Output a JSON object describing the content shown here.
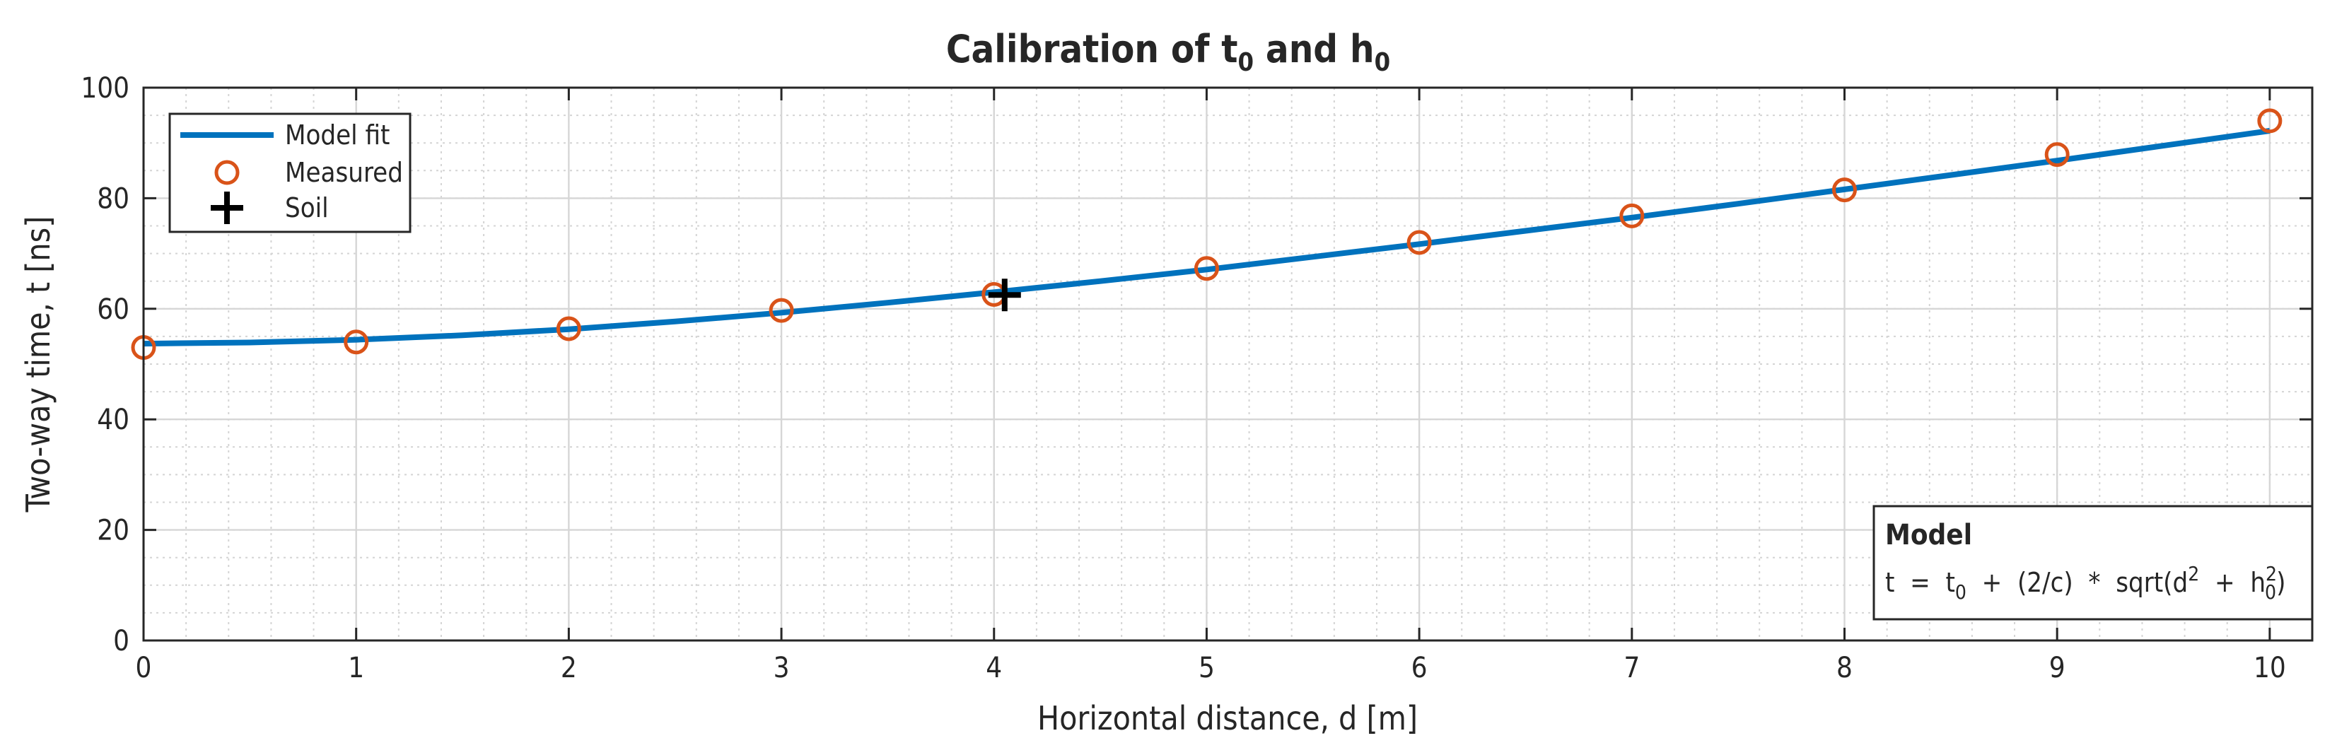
{
  "chart_data": {
    "type": "line",
    "title": "Calibration of t0 and h0",
    "title_parts": {
      "pre": "Calibration of ",
      "sym1": "t",
      "sub1": "0",
      "mid": " and ",
      "sym2": "h",
      "sub2": "0"
    },
    "xlabel": "Horizontal distance, d [m]",
    "ylabel": "Two-way time, t [ns]",
    "xlim": [
      0,
      10.2
    ],
    "ylim": [
      0,
      100
    ],
    "xticks": [
      0,
      1,
      2,
      3,
      4,
      5,
      6,
      7,
      8,
      9,
      10
    ],
    "yticks": [
      0,
      20,
      40,
      60,
      80,
      100
    ],
    "grid": true,
    "minor_grid": true,
    "legend_position": "top-left",
    "series": [
      {
        "name": "Model fit",
        "style": "line",
        "color": "#0072BD",
        "x": [
          0,
          0.5,
          1,
          1.5,
          2,
          2.5,
          3,
          3.5,
          4,
          4.5,
          5,
          5.5,
          6,
          6.5,
          7,
          7.5,
          8,
          8.5,
          9,
          9.5,
          10
        ],
        "y": [
          53.7,
          53.9,
          54.4,
          55.2,
          56.3,
          57.7,
          59.3,
          61.1,
          63.0,
          65.0,
          67.1,
          69.4,
          71.7,
          74.1,
          76.5,
          79.0,
          81.6,
          84.2,
          86.8,
          89.5,
          92.2
        ]
      },
      {
        "name": "Measured",
        "style": "circle",
        "color": "#D95319",
        "x": [
          0,
          1,
          2,
          3,
          4,
          5,
          6,
          7,
          8,
          9,
          10
        ],
        "y": [
          53,
          54,
          56.4,
          59.7,
          62.6,
          67.3,
          72,
          76.8,
          81.5,
          87.9,
          94
        ]
      },
      {
        "name": "Soil",
        "style": "plus",
        "color": "#000000",
        "x": [
          4.05
        ],
        "y": [
          62.5
        ]
      }
    ],
    "annotation": {
      "heading": "Model",
      "equation_parts": {
        "a": "t  =  t",
        "a_sub": "0",
        "b": "  +  (2/c)  *  sqrt(d",
        "b_sup": "2",
        "c": "  +  h",
        "c_sup": "2",
        "c_sub": "0",
        "d": ")"
      }
    }
  }
}
